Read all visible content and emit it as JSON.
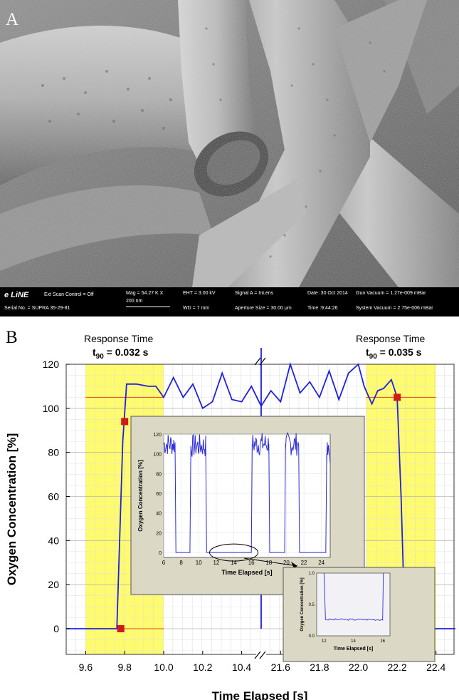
{
  "panel_a": {
    "label": "A",
    "sem_info": {
      "brand": "e LiNE",
      "scan": "Ext Scan Control = Off",
      "serial": "Serial No. = SUPRA 35-29-81",
      "mag": "Mag = 54.27 K X",
      "scale": "200 nm",
      "eht": "EHT = 3.00 kV",
      "wd": "WD = 7 mm",
      "signal": "Signal A = InLens",
      "aperture": "Aperture Size = 30.00 µm",
      "date": "Date :30 Oct 2014",
      "time": "Time :9:44:26",
      "gun": "Gun Vacuum = 1.27e-009 mBar",
      "system": "System Vacuum = 2.75e-006 mBar"
    }
  },
  "panel_b": {
    "label": "B",
    "left_title": "Response Time",
    "left_t90_prefix": "t",
    "left_t90_sub": "90",
    "left_t90_value": " = 0.032 s",
    "right_title": "Response Time",
    "right_t90_prefix": "t",
    "right_t90_sub": "90",
    "right_t90_value": " = 0.035 s"
  },
  "chart_data": [
    {
      "type": "line",
      "xlabel": "Time Elapsed [s]",
      "ylabel": "Oxygen Concentration [%]",
      "ylim": [
        -10,
        120
      ],
      "yticks": [
        0,
        20,
        40,
        60,
        80,
        100,
        120
      ],
      "broken_x_axis": true,
      "xticks_left": [
        "9.6",
        "9.8",
        "10.0",
        "10.2",
        "10.4"
      ],
      "xticks_right": [
        "21.6",
        "21.8",
        "22.0",
        "22.2",
        "22.4"
      ],
      "grid": true,
      "highlight_bands": [
        [
          9.6,
          10.0
        ],
        [
          22.04,
          22.4
        ]
      ],
      "threshold_lines": [
        0,
        105
      ],
      "series": [
        {
          "segment": "left",
          "x": [
            9.5,
            9.76,
            9.79,
            9.81,
            9.86,
            9.92,
            9.96,
            10.0,
            10.05,
            10.1,
            10.15,
            10.2,
            10.25,
            10.3,
            10.35,
            10.4,
            10.45,
            10.5
          ],
          "y": [
            0,
            0,
            85,
            111,
            111,
            110,
            110,
            105,
            114,
            105,
            111,
            100,
            103,
            116,
            104,
            103,
            110,
            101
          ]
        },
        {
          "segment": "right",
          "x": [
            21.5,
            21.55,
            21.6,
            21.65,
            21.7,
            21.75,
            21.8,
            21.85,
            21.9,
            21.95,
            22.0,
            22.03,
            22.07,
            22.1,
            22.13,
            22.17,
            22.2,
            22.22,
            22.24,
            22.3,
            22.5
          ],
          "y": [
            101,
            108,
            103,
            120,
            107,
            112,
            105,
            117,
            104,
            116,
            120,
            110,
            102,
            108,
            109,
            113,
            105,
            60,
            1,
            0,
            0
          ]
        }
      ],
      "markers": [
        {
          "x": 9.78,
          "y": 0
        },
        {
          "x": 9.8,
          "y": 94
        },
        {
          "x": 22.2,
          "y": 105
        },
        {
          "x": 22.24,
          "y": 11
        }
      ]
    },
    {
      "type": "line",
      "xlabel": "Time Elapsed [s]",
      "ylabel": "Oxygen Concentration [%]",
      "xticks": [
        "6",
        "8",
        "10",
        "12",
        "14",
        "16",
        "18",
        "20",
        "22",
        "24"
      ],
      "yticks": [
        "0",
        "20",
        "40",
        "60",
        "80",
        "100",
        "120"
      ],
      "xlim": [
        6,
        25
      ],
      "ylim": [
        -5,
        120
      ],
      "series": [
        {
          "x": [
            6.0,
            7.3,
            7.4,
            9.0,
            9.1,
            10.8,
            10.9,
            12.0,
            12.1,
            16.0,
            16.1,
            18.0,
            18.1,
            19.8,
            19.9,
            21.4,
            21.5,
            24.5,
            24.6,
            25.0
          ],
          "y": [
            110,
            110,
            0,
            0,
            108,
            108,
            0,
            0,
            0,
            0,
            110,
            110,
            0,
            0,
            110,
            110,
            0,
            0,
            100,
            100
          ]
        }
      ]
    },
    {
      "type": "line",
      "xlabel": "Time Elapsed [s]",
      "ylabel": "Oxygen Concentration [%]",
      "xticks": [
        "12",
        "14",
        "16"
      ],
      "yticks": [
        "0.0",
        "0.5",
        "1.0"
      ],
      "xlim": [
        11.5,
        16.5
      ],
      "ylim": [
        0,
        1.0
      ],
      "series": [
        {
          "x": [
            12.0,
            12.1,
            16.0,
            16.05
          ],
          "y": [
            1.0,
            0.26,
            0.26,
            1.0
          ]
        }
      ]
    }
  ]
}
